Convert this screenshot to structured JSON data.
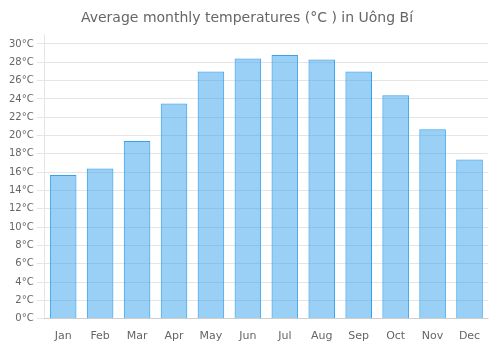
{
  "chart_data": {
    "type": "bar",
    "title": "Average monthly temperatures (°C ) in Uông Bí",
    "categories": [
      "Jan",
      "Feb",
      "Mar",
      "Apr",
      "May",
      "Jun",
      "Jul",
      "Aug",
      "Sep",
      "Oct",
      "Nov",
      "Dec"
    ],
    "values": [
      15.7,
      16.4,
      19.4,
      23.5,
      27.0,
      28.4,
      28.8,
      28.3,
      27.0,
      24.4,
      20.7,
      17.4
    ],
    "ylim": [
      0,
      31
    ],
    "yticks": [
      {
        "value": 0,
        "label": "0°C"
      },
      {
        "value": 2,
        "label": "2°C"
      },
      {
        "value": 4,
        "label": "4°C"
      },
      {
        "value": 6,
        "label": "6°C"
      },
      {
        "value": 8,
        "label": "8°C"
      },
      {
        "value": 10,
        "label": "10°C"
      },
      {
        "value": 12,
        "label": "12°C"
      },
      {
        "value": 14,
        "label": "14°C"
      },
      {
        "value": 16,
        "label": "16°C"
      },
      {
        "value": 18,
        "label": "18°C"
      },
      {
        "value": 20,
        "label": "20°C"
      },
      {
        "value": 22,
        "label": "22°C"
      },
      {
        "value": 24,
        "label": "24°C"
      },
      {
        "value": 26,
        "label": "26°C"
      },
      {
        "value": 28,
        "label": "28°C"
      },
      {
        "value": 30,
        "label": "30°C"
      }
    ],
    "grid": true
  }
}
